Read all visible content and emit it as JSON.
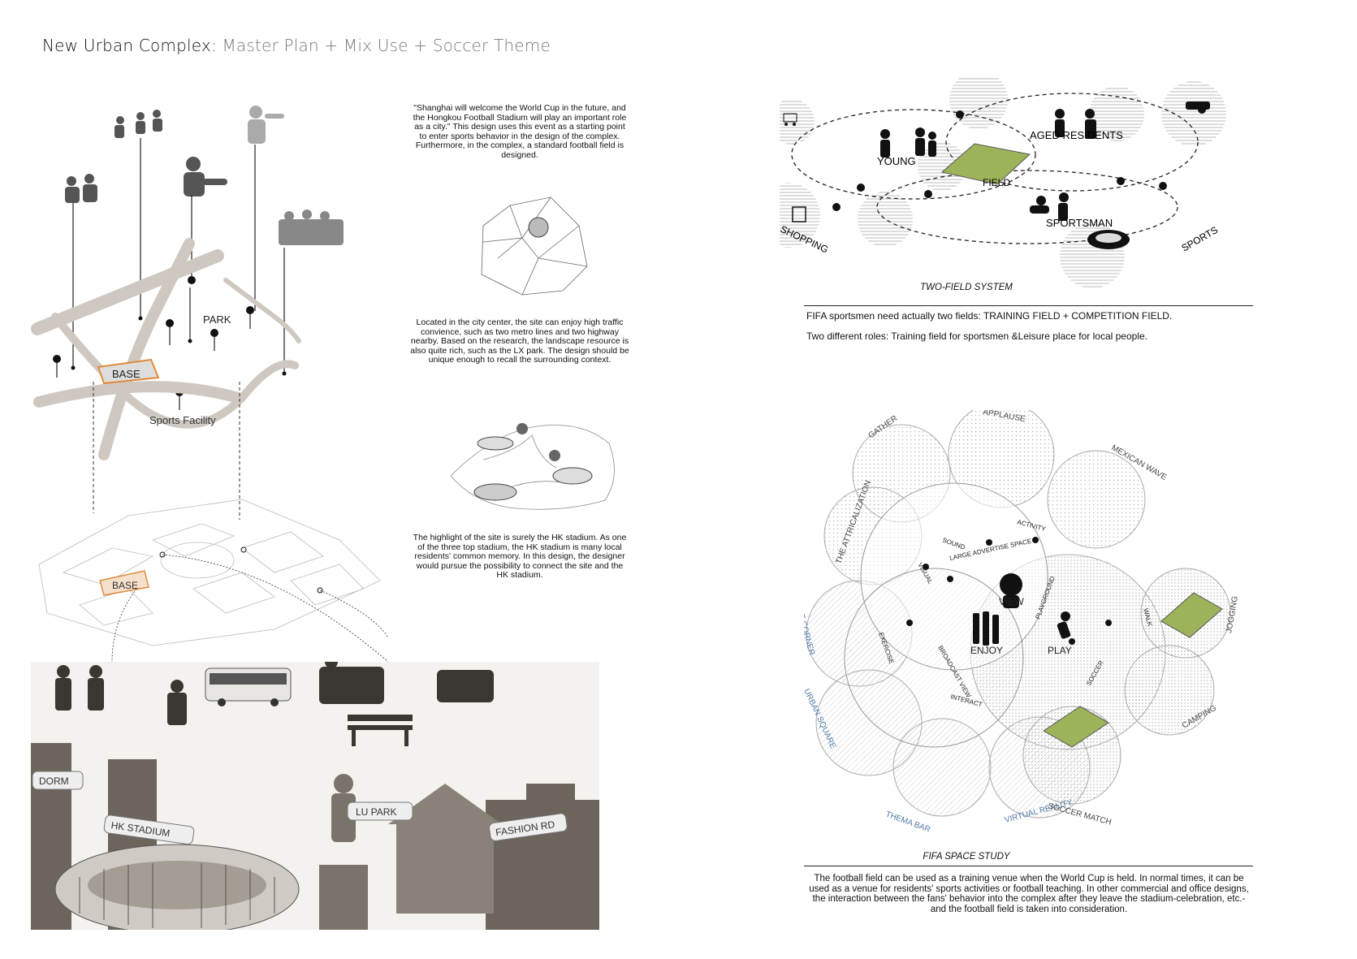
{
  "header": {
    "title_main": "New Urban Complex:",
    "title_sub": "Master Plan + Mix Use + Soccer Theme"
  },
  "intro_text": "\"Shanghai will welcome the World Cup in the future, and the Hongkou Football Stadium will play an important role as a city.\" This design uses this event as a starting point to enter sports behavior in the design of the complex. Furthermore, in the complex, a standard football field is designed.",
  "location_text": "Located in the city center, the site can enjoy high traffic convience, such as two metro lines and two highway nearby. Based on the research, the landscape resource is also quite rich, such as the LX park. The design should be unique enough to recall the surrounding context.",
  "stadium_text": "The highlight of the site is surely the HK stadium. As one of the three top stadium, the HK stadium is many local residents' common memory. In this design, the designer would pursue the possibility to connect the site and the HK stadium.",
  "site_map": {
    "park_label": "PARK",
    "base_label": "BASE",
    "sports_facility_label": "Sports Facility",
    "base_label_3d": "BASE"
  },
  "collage_signs": {
    "dorm": "DORM",
    "hk_stadium": "HK STADIUM",
    "lu_park": "LU PARK",
    "fashion_rd": "FASHION RD"
  },
  "two_field": {
    "labels": {
      "young": "YOUNG",
      "aged": "AGED RESIDENTS",
      "field": "FIELD",
      "sportsman": "SPORTSMAN",
      "shopping": "SHOPPING",
      "sports": "SPORTS"
    },
    "caption": "TWO-FIELD SYSTEM",
    "line1": "FIFA sportsmen need actually two fields:  TRAINING FIELD + COMPETITION FIELD.",
    "line2": "Two different roles: Training field for sportsmen &Leisure place for local people."
  },
  "fifa_study": {
    "outer_labels": {
      "gather": "GATHER",
      "applause": "APPLAUSE",
      "mexican_wave": "MEXICAN WAVE",
      "theatricalization": "THE ATTRICALIZATION",
      "street_corner": "STREET CORNER",
      "urban_square": "URBAN SQUARE",
      "thema_bar": "THEMA BAR",
      "virtual_reality": "VIRTUAL REALITY",
      "soccer_match": "SOCCER MATCH",
      "camping": "CAMPING",
      "jogging": "JOGGING"
    },
    "inner_labels": {
      "view": "VIEW",
      "enjoy": "ENJOY",
      "play": "PLAY",
      "sound": "SOUND",
      "activity": "ACTIVITY",
      "visual": "VISUAL",
      "large_advertise": "LARGE ADVERTISE SPACE",
      "exercise": "EXERCISE",
      "broadcast_view": "BROADCAST VIEW",
      "interact": "INTERACT",
      "playground": "PLAYGROUND",
      "soccer": "SOCCER",
      "walk": "WALK"
    },
    "caption": "FIFA SPACE STUDY",
    "text": "The football field can be used as a training venue when the World Cup is held. In normal times, it can be used as a venue for residents' sports activities or football teaching. In other commercial and office designs, the interaction between the fans' behavior into the complex after they leave the stadium-celebration, etc.-and the football field is taken into consideration."
  },
  "colors": {
    "field_green": "#9db35a",
    "blue_label": "#4f7aa8",
    "base_orange": "#e08a3a"
  }
}
